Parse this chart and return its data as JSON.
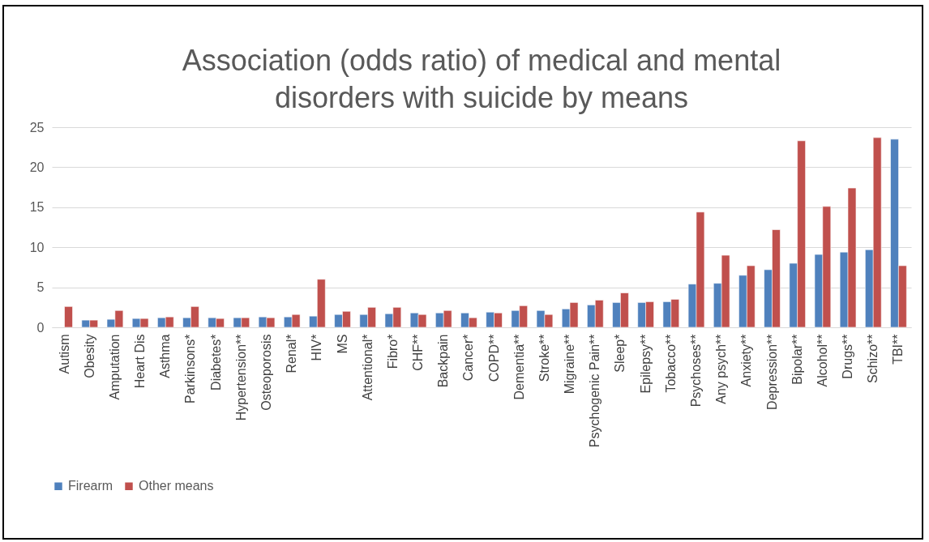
{
  "chart_data": {
    "type": "bar",
    "title": "Association (odds ratio) of medical and mental disorders with suicide by means",
    "categories": [
      "Autism",
      "Obesity",
      "Amputation",
      "Heart Dis",
      "Asthma",
      "Parkinsons*",
      "Diabetes*",
      "Hypertension**",
      "Osteoporosis",
      "Renal*",
      "HIV*",
      "MS",
      "Attentional*",
      "Fibro*",
      "CHF**",
      "Backpain",
      "Cancer*",
      "COPD**",
      "Dementia**",
      "Stroke**",
      "Migraine**",
      "Psychogenic Pain**",
      "Sleep*",
      "Epilepsy**",
      "Tobacco**",
      "Psychoses**",
      "Any psych**",
      "Anxiety**",
      "Depression**",
      "Bipolar**",
      "Alcohol**",
      "Drugs**",
      "Schizo**",
      "TBI**"
    ],
    "series": [
      {
        "name": "Firearm",
        "color": "#4f81bd",
        "values": [
          null,
          0.9,
          1.0,
          1.1,
          1.2,
          1.2,
          1.2,
          1.2,
          1.3,
          1.3,
          1.4,
          1.6,
          1.6,
          1.7,
          1.8,
          1.8,
          1.8,
          1.9,
          2.1,
          2.1,
          2.3,
          2.8,
          3.1,
          3.1,
          3.2,
          5.4,
          5.5,
          6.5,
          7.2,
          8.0,
          9.1,
          9.4,
          9.7,
          23.5
        ]
      },
      {
        "name": "Other means",
        "color": "#c0504d",
        "values": [
          2.6,
          0.9,
          2.1,
          1.1,
          1.3,
          2.6,
          1.1,
          1.2,
          1.2,
          1.6,
          6.0,
          2.0,
          2.5,
          2.5,
          1.6,
          2.1,
          1.2,
          1.8,
          2.7,
          1.6,
          3.1,
          3.4,
          4.3,
          3.2,
          3.5,
          14.4,
          9.0,
          7.7,
          12.2,
          23.3,
          15.1,
          17.4,
          23.7,
          7.7
        ]
      }
    ],
    "ylim": [
      0,
      25
    ],
    "yticks": [
      0,
      5,
      10,
      15,
      20,
      25
    ],
    "grid": "y",
    "legend": "bottom"
  }
}
